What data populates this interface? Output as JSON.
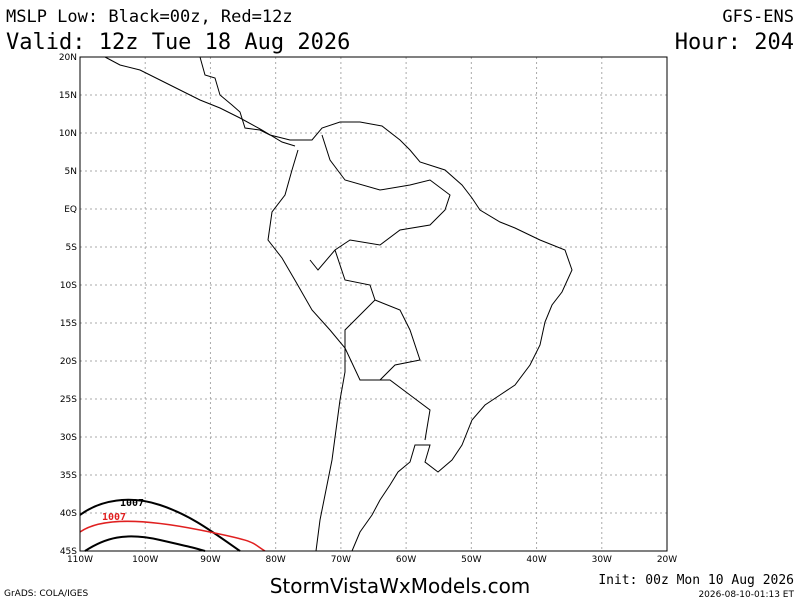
{
  "header": {
    "field": "MSLP Low: Black=00z, Red=12z",
    "valid": "Valid: 12z Tue 18 Aug 2026",
    "model": "GFS-ENS",
    "hour": "Hour: 204"
  },
  "map": {
    "lat_labels": [
      "20N",
      "15N",
      "10N",
      "5N",
      "EQ",
      "5S",
      "10S",
      "15S",
      "20S",
      "25S",
      "30S",
      "35S",
      "40S",
      "45S"
    ],
    "lon_labels": [
      "110W",
      "100W",
      "90W",
      "80W",
      "70W",
      "60W",
      "50W",
      "40W",
      "30W",
      "20W"
    ],
    "contour_labels": [
      "1007",
      "1007"
    ]
  },
  "footer": {
    "credit": "GrADS: COLA/IGES",
    "site": "StormVistaWxModels.com",
    "init": "Init: 00z Mon 10 Aug 2026",
    "timestamp": "2026-08-10-01:13 ET"
  }
}
